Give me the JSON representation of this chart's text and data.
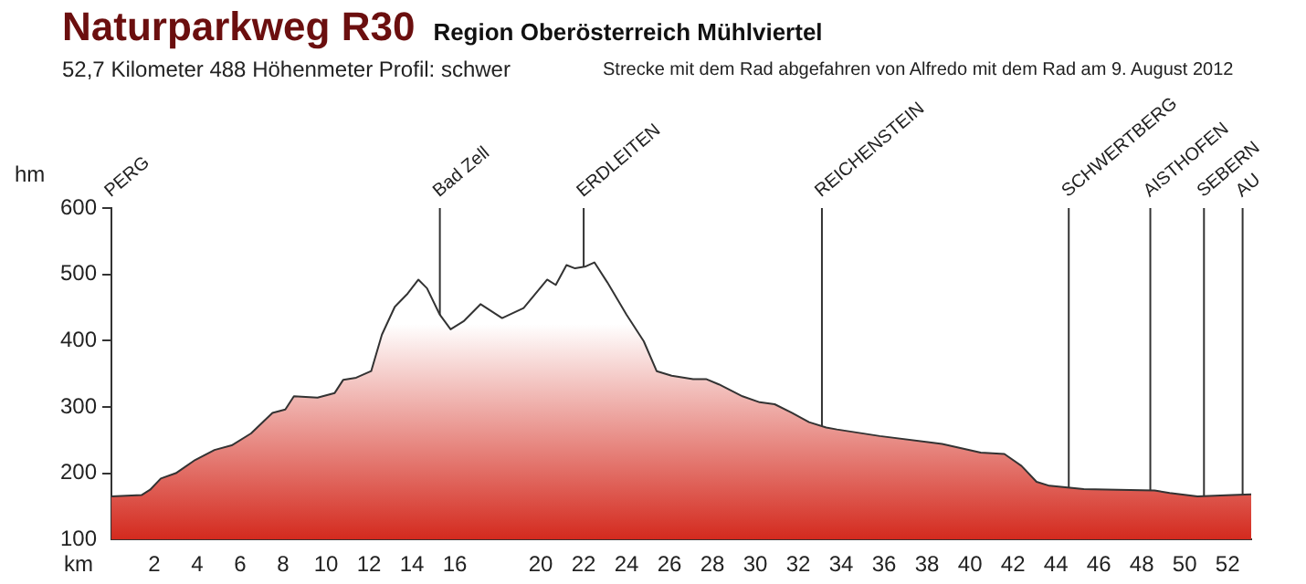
{
  "chart_data": {
    "type": "area",
    "title": "Naturparkweg R30",
    "subtitle": "Region Oberösterreich  Mühlviertel",
    "annotations": [
      "52,7 Kilometer  488 Höhenmeter  Profil: schwer",
      "Strecke mit dem Rad abgefahren von Alfredo mit dem Rad am 9. August 2012",
      "PERG"
    ],
    "xlabel": "km",
    "ylabel": "hm",
    "series": [
      {
        "color": "#d42a1e",
        "x": [
          0,
          1.4,
          1.8,
          2.3,
          3.0,
          3.9,
          4.8,
          5.6,
          6.5,
          7.5,
          8.1,
          8.5,
          9.6,
          10.4,
          10.8,
          11.4,
          12.1,
          12.6,
          13.2,
          13.8,
          14.3,
          14.7,
          15.3,
          15.8,
          16.4,
          17.2,
          18.2,
          19.2,
          20.3,
          20.7,
          21.2,
          21.6,
          22.1,
          22.5,
          23.1,
          24.0,
          24.8,
          25.4,
          26.1,
          27.1,
          27.7,
          28.3,
          29.4,
          30.2,
          30.9,
          31.7,
          32.5,
          33.3,
          33.8,
          35.8,
          38.7,
          40.5,
          41.6,
          42.4,
          43.1,
          43.7,
          45.3,
          46.9,
          48.6,
          49.3,
          50.6,
          52.2,
          53.1
        ],
        "values": [
          165,
          167,
          175,
          192,
          200,
          220,
          235,
          242,
          260,
          291,
          296,
          316,
          314,
          321,
          341,
          344,
          354,
          409,
          451,
          471,
          492,
          479,
          439,
          417,
          429,
          455,
          434,
          449,
          492,
          484,
          514,
          509,
          512,
          518,
          488,
          439,
          399,
          354,
          347,
          342,
          342,
          334,
          316,
          307,
          304,
          291,
          277,
          269,
          266,
          256,
          244,
          231,
          229,
          211,
          187,
          181,
          176,
          175,
          174,
          170,
          165,
          167,
          168
        ]
      }
    ],
    "xlim": [
      0,
      53.1
    ],
    "ylim": [
      100,
      600
    ],
    "xticks": [
      2,
      4,
      6,
      8,
      10,
      12,
      14,
      16,
      20,
      22,
      24,
      26,
      28,
      30,
      32,
      34,
      36,
      38,
      40,
      42,
      44,
      46,
      48,
      50,
      52
    ],
    "yticks": [
      100,
      200,
      300,
      400,
      500,
      600
    ],
    "ref_lines": [
      {
        "axis": "x",
        "value": 15.3,
        "label": "Bad Zell"
      },
      {
        "axis": "x",
        "value": 22,
        "label": "ERDLEITEN"
      },
      {
        "axis": "x",
        "value": 33.1,
        "label": "REICHENSTEIN"
      },
      {
        "axis": "x",
        "value": 44.6,
        "label": "SCHWERTBERG"
      },
      {
        "axis": "x",
        "value": 48.4,
        "label": "AISTHOFEN"
      },
      {
        "axis": "x",
        "value": 50.9,
        "label": "SEBERN"
      },
      {
        "axis": "x",
        "value": 52.7,
        "label": "AU"
      }
    ]
  }
}
